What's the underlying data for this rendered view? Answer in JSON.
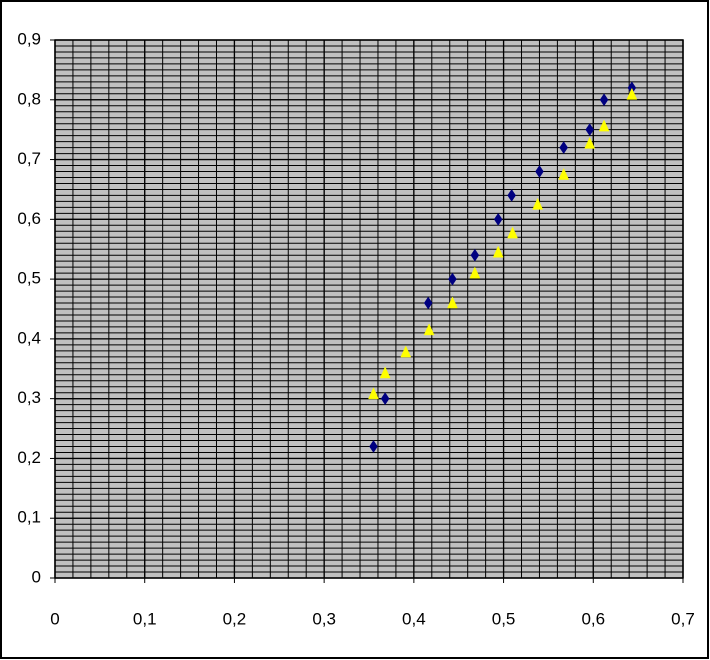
{
  "chart_data": {
    "type": "scatter",
    "xlim": [
      0,
      0.7
    ],
    "xticks": [
      0,
      {
        "value": 0.1,
        "label": "0,1"
      },
      {
        "value": 0.2,
        "label": "0,2"
      },
      {
        "value": 0.3,
        "label": "0,3"
      },
      {
        "value": 0.4,
        "label": "0,4"
      },
      {
        "value": 0.5,
        "label": "0,5"
      },
      {
        "value": 0.6,
        "label": "0,6"
      },
      {
        "value": 0.7,
        "label": "0,7"
      }
    ],
    "ylim": [
      0,
      0.9
    ],
    "yticks": [
      0,
      {
        "value": 0.1,
        "label": "0,1"
      },
      {
        "value": 0.2,
        "label": "0,2"
      },
      {
        "value": 0.3,
        "label": "0,3"
      },
      {
        "value": 0.4,
        "label": "0,4"
      },
      {
        "value": 0.5,
        "label": "0,5"
      },
      {
        "value": 0.6,
        "label": "0,6"
      },
      {
        "value": 0.7,
        "label": "0,7"
      },
      {
        "value": 0.8,
        "label": "0,8"
      },
      {
        "value": 0.9,
        "label": "0,9"
      }
    ],
    "grid": true,
    "minor_grid": {
      "x": 0.02,
      "y": 0.01
    },
    "background": "#c0c0c0",
    "series": [
      {
        "color": "#000080",
        "marker": "diamond",
        "x": [
          0.355,
          0.368,
          0.416,
          0.443,
          0.468,
          0.494,
          0.509,
          0.54,
          0.567,
          0.596,
          0.612,
          0.643
        ],
        "values": [
          0.22,
          0.3,
          0.46,
          0.5,
          0.54,
          0.6,
          0.64,
          0.68,
          0.72,
          0.75,
          0.8,
          0.82
        ]
      },
      {
        "color": "#ffff00",
        "marker": "triangle",
        "x": [
          0.355,
          0.368,
          0.391,
          0.417,
          0.443,
          0.468,
          0.494,
          0.51,
          0.538,
          0.567,
          0.596,
          0.612,
          0.643
        ],
        "values": [
          0.308,
          0.343,
          0.378,
          0.415,
          0.46,
          0.51,
          0.545,
          0.577,
          0.625,
          0.675,
          0.727,
          0.756,
          0.809
        ]
      }
    ]
  }
}
